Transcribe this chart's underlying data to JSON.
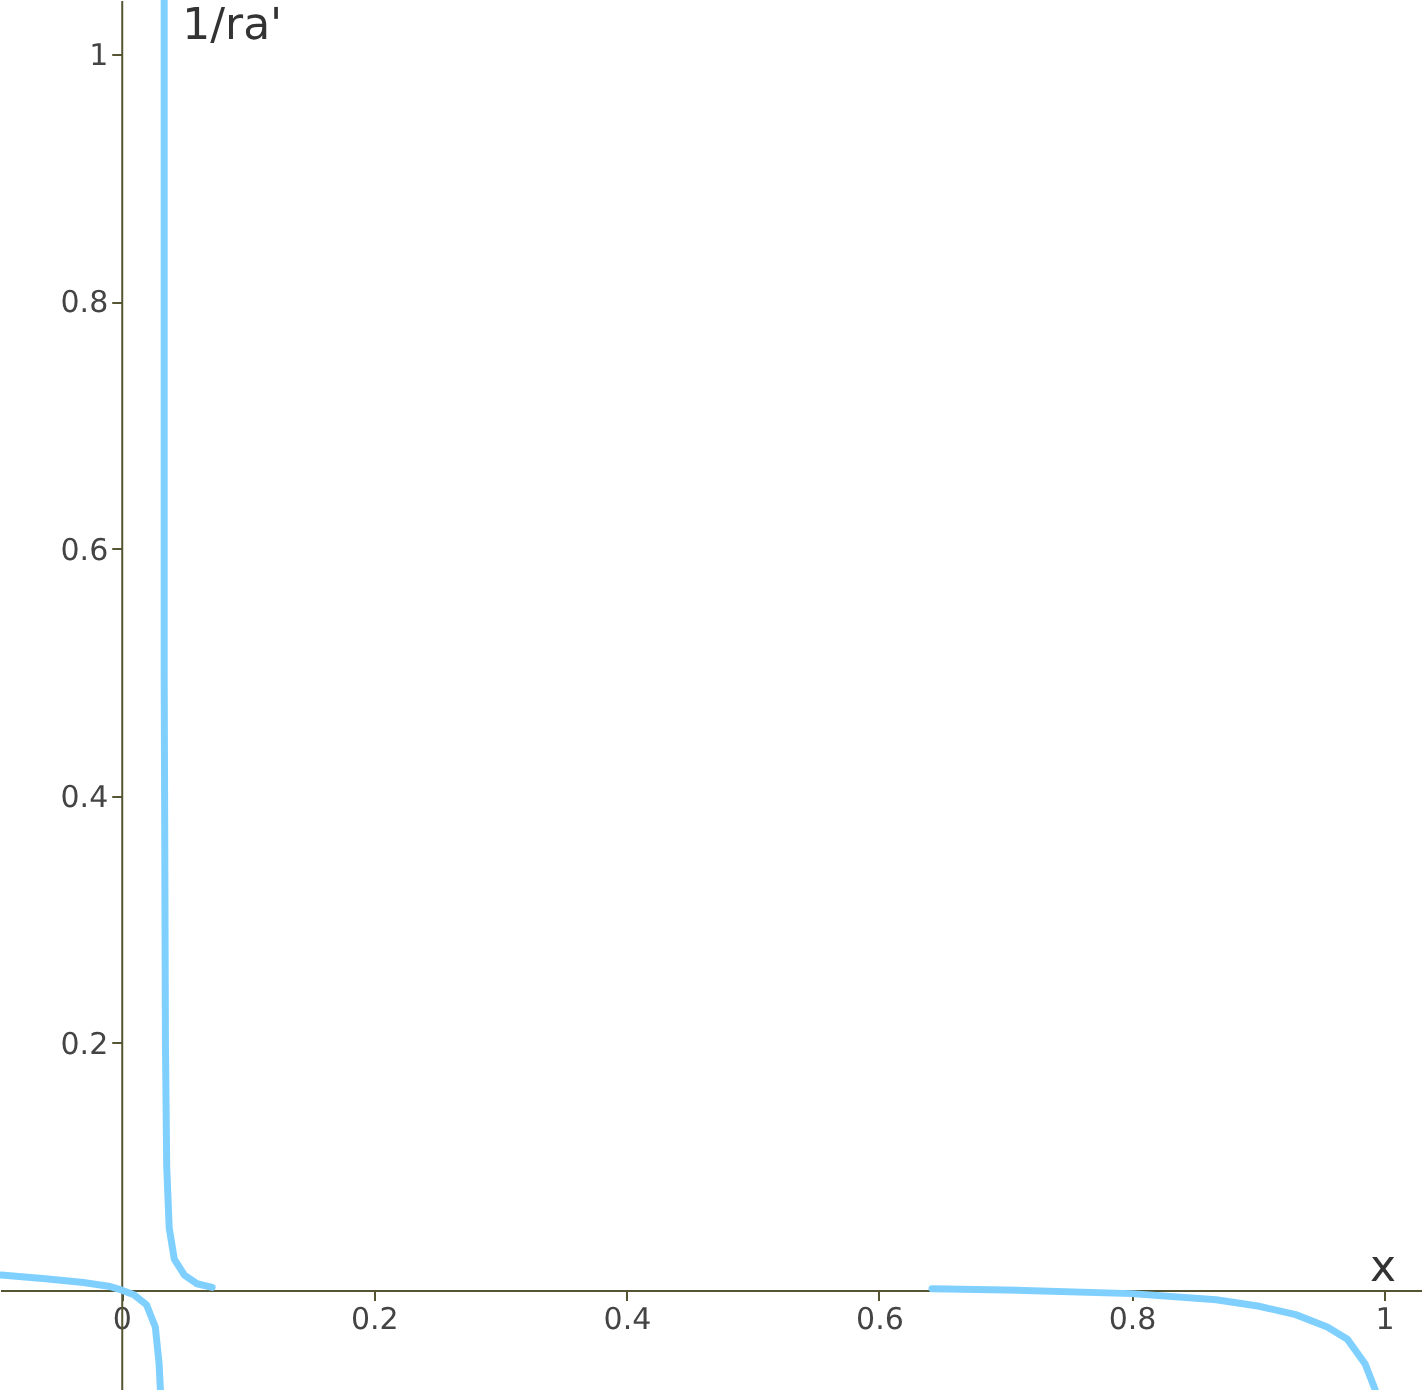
{
  "chart_data": {
    "type": "line",
    "xlabel": "x",
    "ylabel": "1/ra'",
    "xlim": [
      -0.096,
      1.03
    ],
    "ylim": [
      -0.081,
      1.044
    ],
    "xticks": [
      0,
      0.2,
      0.4,
      0.6,
      0.8,
      1
    ],
    "yticks": [
      0.2,
      0.4,
      0.6,
      0.8,
      1
    ],
    "grid": false,
    "marker": "none",
    "line_style": "solid",
    "series": [
      {
        "color": "#80d0ff",
        "x": [
          -0.095,
          -0.06,
          -0.03,
          -0.01,
          0,
          0.01,
          0.02,
          0.027,
          0.03,
          0.031
        ],
        "values": [
          0.012,
          0.009,
          0.006,
          0.003,
          0,
          -0.004,
          -0.012,
          -0.03,
          -0.06,
          -0.081
        ]
      },
      {
        "color": "#80d0ff",
        "x": [
          0.034,
          0.034,
          0.035,
          0.036,
          0.038,
          0.042,
          0.05,
          0.06,
          0.072
        ],
        "values": [
          1.044,
          0.5,
          0.2,
          0.1,
          0.05,
          0.025,
          0.012,
          0.005,
          0.002
        ]
      },
      {
        "color": "#80d0ff",
        "x": [
          0.642,
          0.7,
          0.8,
          0.867,
          0.9,
          0.93,
          0.955,
          0.971,
          0.985,
          0.993
        ],
        "values": [
          0.001,
          0,
          -0.003,
          -0.008,
          -0.013,
          -0.02,
          -0.03,
          -0.04,
          -0.06,
          -0.081
        ]
      }
    ]
  }
}
